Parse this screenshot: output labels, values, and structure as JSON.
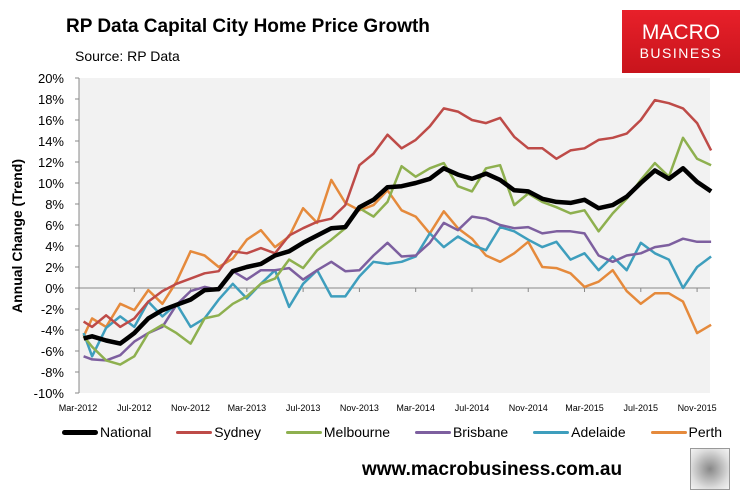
{
  "header": {
    "title": "RP Data Capital City Home Price Growth",
    "source": "Source: RP Data"
  },
  "logo": {
    "line1": "MACRO",
    "line2": "BUSINESS"
  },
  "footer": {
    "url": "www.macrobusiness.com.au"
  },
  "chart_data": {
    "type": "line",
    "title": "RP Data Capital City Home Price Growth",
    "ylabel": "Annual Change (Trend)",
    "xlabel": "",
    "ylim": [
      -10,
      20
    ],
    "yticks": [
      "-10%",
      "-8%",
      "-6%",
      "-4%",
      "-2%",
      "0%",
      "2%",
      "4%",
      "6%",
      "8%",
      "10%",
      "12%",
      "14%",
      "16%",
      "18%",
      "20%"
    ],
    "x_start": "Mar-2012",
    "x_interval": "monthly",
    "xtick_labels": [
      "Mar-2012",
      "Jul-2012",
      "Nov-2012",
      "Mar-2013",
      "Jul-2013",
      "Nov-2013",
      "Mar-2014",
      "Jul-2014",
      "Nov-2014",
      "Mar-2015",
      "Jul-2015",
      "Nov-2015"
    ],
    "grid": false,
    "legend_position": "bottom",
    "series": [
      {
        "name": "National",
        "color": "#000000",
        "width": 4,
        "values": [
          -4.8,
          -4.6,
          -5.0,
          -5.3,
          -4.3,
          -2.9,
          -2.1,
          -1.6,
          -1.1,
          -0.2,
          -0.1,
          1.6,
          2.0,
          2.3,
          3.1,
          3.5,
          4.3,
          5.0,
          5.7,
          5.8,
          7.7,
          8.4,
          9.6,
          9.7,
          10.0,
          10.4,
          11.4,
          10.8,
          10.4,
          10.9,
          10.3,
          9.3,
          9.2,
          8.5,
          8.2,
          8.1,
          8.4,
          7.6,
          7.9,
          8.7,
          10.0,
          11.2,
          10.4,
          11.4,
          10.1,
          9.2
        ]
      },
      {
        "name": "Sydney",
        "color": "#be4b48",
        "width": 2,
        "values": [
          -3.2,
          -3.7,
          -2.6,
          -3.7,
          -2.9,
          -1.3,
          -0.3,
          0.4,
          0.9,
          1.4,
          1.6,
          3.5,
          3.3,
          3.8,
          3.3,
          5.0,
          5.7,
          6.3,
          6.6,
          7.9,
          11.7,
          12.8,
          14.6,
          13.3,
          14.1,
          15.4,
          17.1,
          16.8,
          16.0,
          15.7,
          16.2,
          14.4,
          13.3,
          13.3,
          12.3,
          13.1,
          13.3,
          14.1,
          14.3,
          14.7,
          16.0,
          17.9,
          17.6,
          17.1,
          15.7,
          13.1
        ]
      },
      {
        "name": "Melbourne",
        "color": "#8eb04f",
        "width": 2,
        "values": [
          -4.6,
          -5.6,
          -6.9,
          -7.3,
          -6.5,
          -4.3,
          -3.5,
          -4.3,
          -5.3,
          -2.9,
          -2.6,
          -1.5,
          -0.8,
          0.4,
          0.9,
          2.7,
          1.9,
          3.6,
          4.6,
          5.7,
          7.6,
          6.8,
          8.2,
          11.6,
          10.6,
          11.4,
          11.9,
          9.7,
          9.2,
          11.4,
          11.7,
          7.9,
          9.0,
          8.2,
          7.7,
          7.1,
          7.4,
          5.4,
          7.1,
          8.5,
          10.3,
          11.9,
          10.6,
          14.3,
          12.3,
          11.7
        ]
      },
      {
        "name": "Brisbane",
        "color": "#7d5f9f",
        "width": 2,
        "values": [
          -6.5,
          -6.8,
          -6.9,
          -6.4,
          -5.1,
          -4.3,
          -3.7,
          -1.6,
          -0.3,
          0.1,
          -0.2,
          1.6,
          0.8,
          1.7,
          1.7,
          1.9,
          0.8,
          1.7,
          2.5,
          1.6,
          1.7,
          3.1,
          4.3,
          3.0,
          3.1,
          4.3,
          6.2,
          5.5,
          6.8,
          6.6,
          6.0,
          5.7,
          5.8,
          5.2,
          5.4,
          5.4,
          5.2,
          3.1,
          2.5,
          3.1,
          3.3,
          3.9,
          4.1,
          4.7,
          4.4,
          4.4
        ]
      },
      {
        "name": "Adelaide",
        "color": "#3e9ebd",
        "width": 2,
        "values": [
          -4.3,
          -6.5,
          -3.8,
          -2.7,
          -3.7,
          -1.3,
          -2.7,
          -1.5,
          -3.7,
          -2.9,
          -1.1,
          0.4,
          -1.0,
          0.4,
          1.7,
          -1.8,
          0.4,
          1.7,
          -0.8,
          -0.8,
          1.1,
          2.5,
          2.3,
          2.5,
          3.0,
          5.2,
          3.9,
          4.9,
          4.1,
          3.6,
          5.8,
          5.4,
          4.6,
          3.9,
          4.4,
          2.7,
          3.3,
          1.7,
          3.0,
          1.7,
          4.3,
          3.3,
          2.7,
          0.0,
          2.0,
          3.0
        ]
      },
      {
        "name": "Perth",
        "color": "#e58a3c",
        "width": 2,
        "values": [
          -4.6,
          -2.9,
          -3.7,
          -1.5,
          -2.1,
          -0.2,
          -1.5,
          0.6,
          3.5,
          3.1,
          2.0,
          2.8,
          4.6,
          5.5,
          3.9,
          4.9,
          7.6,
          6.2,
          10.3,
          8.1,
          7.4,
          7.9,
          9.3,
          7.4,
          6.8,
          5.2,
          7.3,
          5.7,
          4.7,
          3.1,
          2.5,
          3.3,
          4.4,
          2.0,
          1.9,
          1.4,
          0.1,
          0.6,
          1.7,
          -0.3,
          -1.5,
          -0.5,
          -0.5,
          -1.3,
          -4.3,
          -3.5
        ]
      }
    ]
  }
}
